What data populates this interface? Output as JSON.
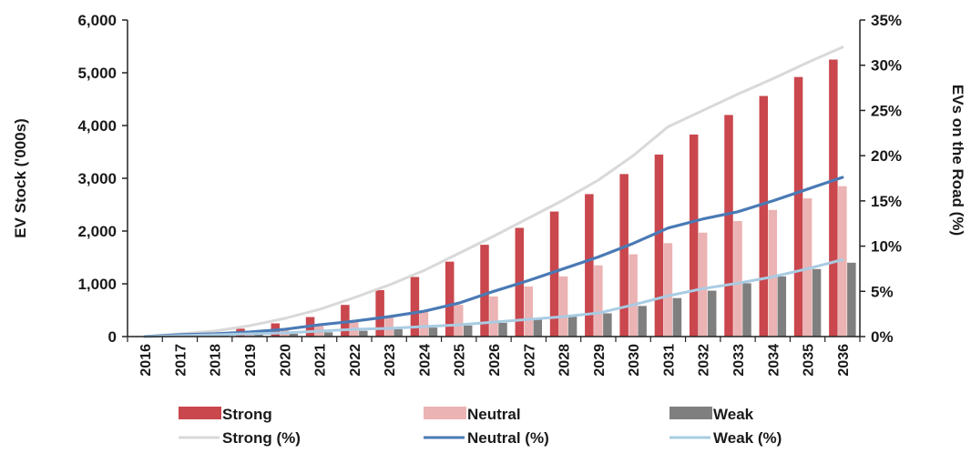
{
  "chart_data": {
    "type": "bar",
    "categories": [
      "2016",
      "2017",
      "2018",
      "2019",
      "2020",
      "2021",
      "2022",
      "2023",
      "2024",
      "2025",
      "2026",
      "2027",
      "2028",
      "2029",
      "2030",
      "2031",
      "2032",
      "2033",
      "2034",
      "2035",
      "2036"
    ],
    "ylabel": "EV Stock ('000s)",
    "y2label": "EVs on the Road (%)",
    "ylim": [
      0,
      6000
    ],
    "y2lim": [
      0,
      35
    ],
    "yticks": [
      "0",
      "1,000",
      "2,000",
      "3,000",
      "4,000",
      "5,000",
      "6,000"
    ],
    "y2ticks": [
      "0%",
      "5%",
      "10%",
      "15%",
      "20%",
      "25%",
      "30%",
      "35%"
    ],
    "bar_series": [
      {
        "name": "Strong",
        "color": "#c9474d",
        "values": [
          10,
          40,
          90,
          150,
          250,
          370,
          600,
          880,
          1130,
          1420,
          1740,
          2060,
          2370,
          2700,
          3080,
          3450,
          3830,
          4200,
          4560,
          4920,
          5250
        ]
      },
      {
        "name": "Neutral",
        "color": "#ebb3b3",
        "values": [
          5,
          20,
          45,
          80,
          130,
          200,
          280,
          380,
          480,
          600,
          760,
          950,
          1140,
          1350,
          1560,
          1770,
          1970,
          2190,
          2400,
          2620,
          2850
        ]
      },
      {
        "name": "Weak",
        "color": "#7f7f7f",
        "values": [
          2,
          8,
          20,
          35,
          55,
          80,
          110,
          140,
          170,
          210,
          260,
          320,
          380,
          440,
          580,
          730,
          870,
          1010,
          1140,
          1280,
          1400
        ]
      }
    ],
    "line_series": [
      {
        "name": "Strong (%)",
        "color": "#d9d9d9",
        "values": [
          0.0,
          0.3,
          0.6,
          1.2,
          2.0,
          3.0,
          4.3,
          5.7,
          7.3,
          9.2,
          11.1,
          13.1,
          15.1,
          17.3,
          20.0,
          23.2,
          25.0,
          26.8,
          28.5,
          30.3,
          32.0
        ]
      },
      {
        "name": "Neutral (%)",
        "color": "#4a7ab5",
        "values": [
          0.0,
          0.2,
          0.3,
          0.5,
          0.8,
          1.3,
          1.7,
          2.2,
          2.8,
          3.7,
          5.0,
          6.2,
          7.5,
          8.8,
          10.3,
          12.0,
          13.0,
          13.8,
          15.0,
          16.3,
          17.6
        ]
      },
      {
        "name": "Weak (%)",
        "color": "#a9cce3",
        "values": [
          0.0,
          0.1,
          0.2,
          0.3,
          0.4,
          0.6,
          0.8,
          0.9,
          1.1,
          1.3,
          1.6,
          1.9,
          2.2,
          2.6,
          3.5,
          4.5,
          5.3,
          5.9,
          6.6,
          7.5,
          8.5
        ]
      }
    ],
    "legend": {
      "placement": "bottom"
    },
    "grid": false
  }
}
